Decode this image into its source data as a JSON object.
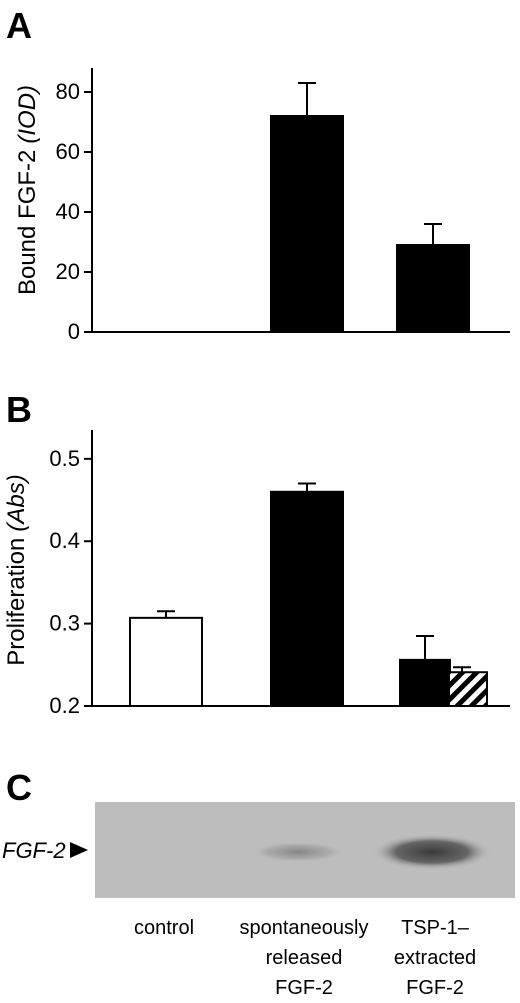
{
  "panels": {
    "a": "A",
    "b": "B",
    "c": "C"
  },
  "chart_data": [
    {
      "type": "bar",
      "panel": "A",
      "ylabel_main": "Bound FGF-2",
      "ylabel_unit": "(IOD)",
      "ylim": [
        0,
        88
      ],
      "yticks": [
        0,
        20,
        40,
        60,
        80
      ],
      "categories": [
        "control",
        "spontaneously released FGF-2",
        "TSP-1–extracted FGF-2"
      ],
      "values": [
        0,
        72,
        29
      ],
      "errors": [
        0,
        11,
        7
      ],
      "fill": [
        "#000000",
        "#000000",
        "#000000"
      ]
    },
    {
      "type": "bar",
      "panel": "B",
      "ylabel_main": "Proliferation",
      "ylabel_unit": "(Abs)",
      "ylim": [
        0.2,
        0.535
      ],
      "yticks": [
        0.2,
        0.3,
        0.4,
        0.5
      ],
      "ytick_labels": [
        "0.2",
        "0.3",
        "0.4",
        "0.5"
      ],
      "categories": [
        "control",
        "spontaneously released FGF-2",
        "TSP-1–extracted FGF-2"
      ],
      "series": [
        {
          "values": [
            0.307,
            0.46,
            0.256
          ],
          "errors": [
            0.008,
            0.01,
            0.029
          ],
          "fill": [
            "#ffffff",
            "#000000",
            "#000000"
          ]
        },
        {
          "values": [
            null,
            null,
            0.241
          ],
          "errors": [
            null,
            null,
            0.006
          ],
          "fill": [
            "hatch",
            "hatch",
            "hatch"
          ]
        }
      ]
    }
  ],
  "blot": {
    "label": "FGF-2",
    "band_intensity": [
      0,
      0.35,
      1.0
    ]
  },
  "categories_text": [
    [
      "control"
    ],
    [
      "spontaneously",
      "released",
      "FGF-2"
    ],
    [
      "TSP-1–",
      "extracted",
      "FGF-2"
    ]
  ]
}
